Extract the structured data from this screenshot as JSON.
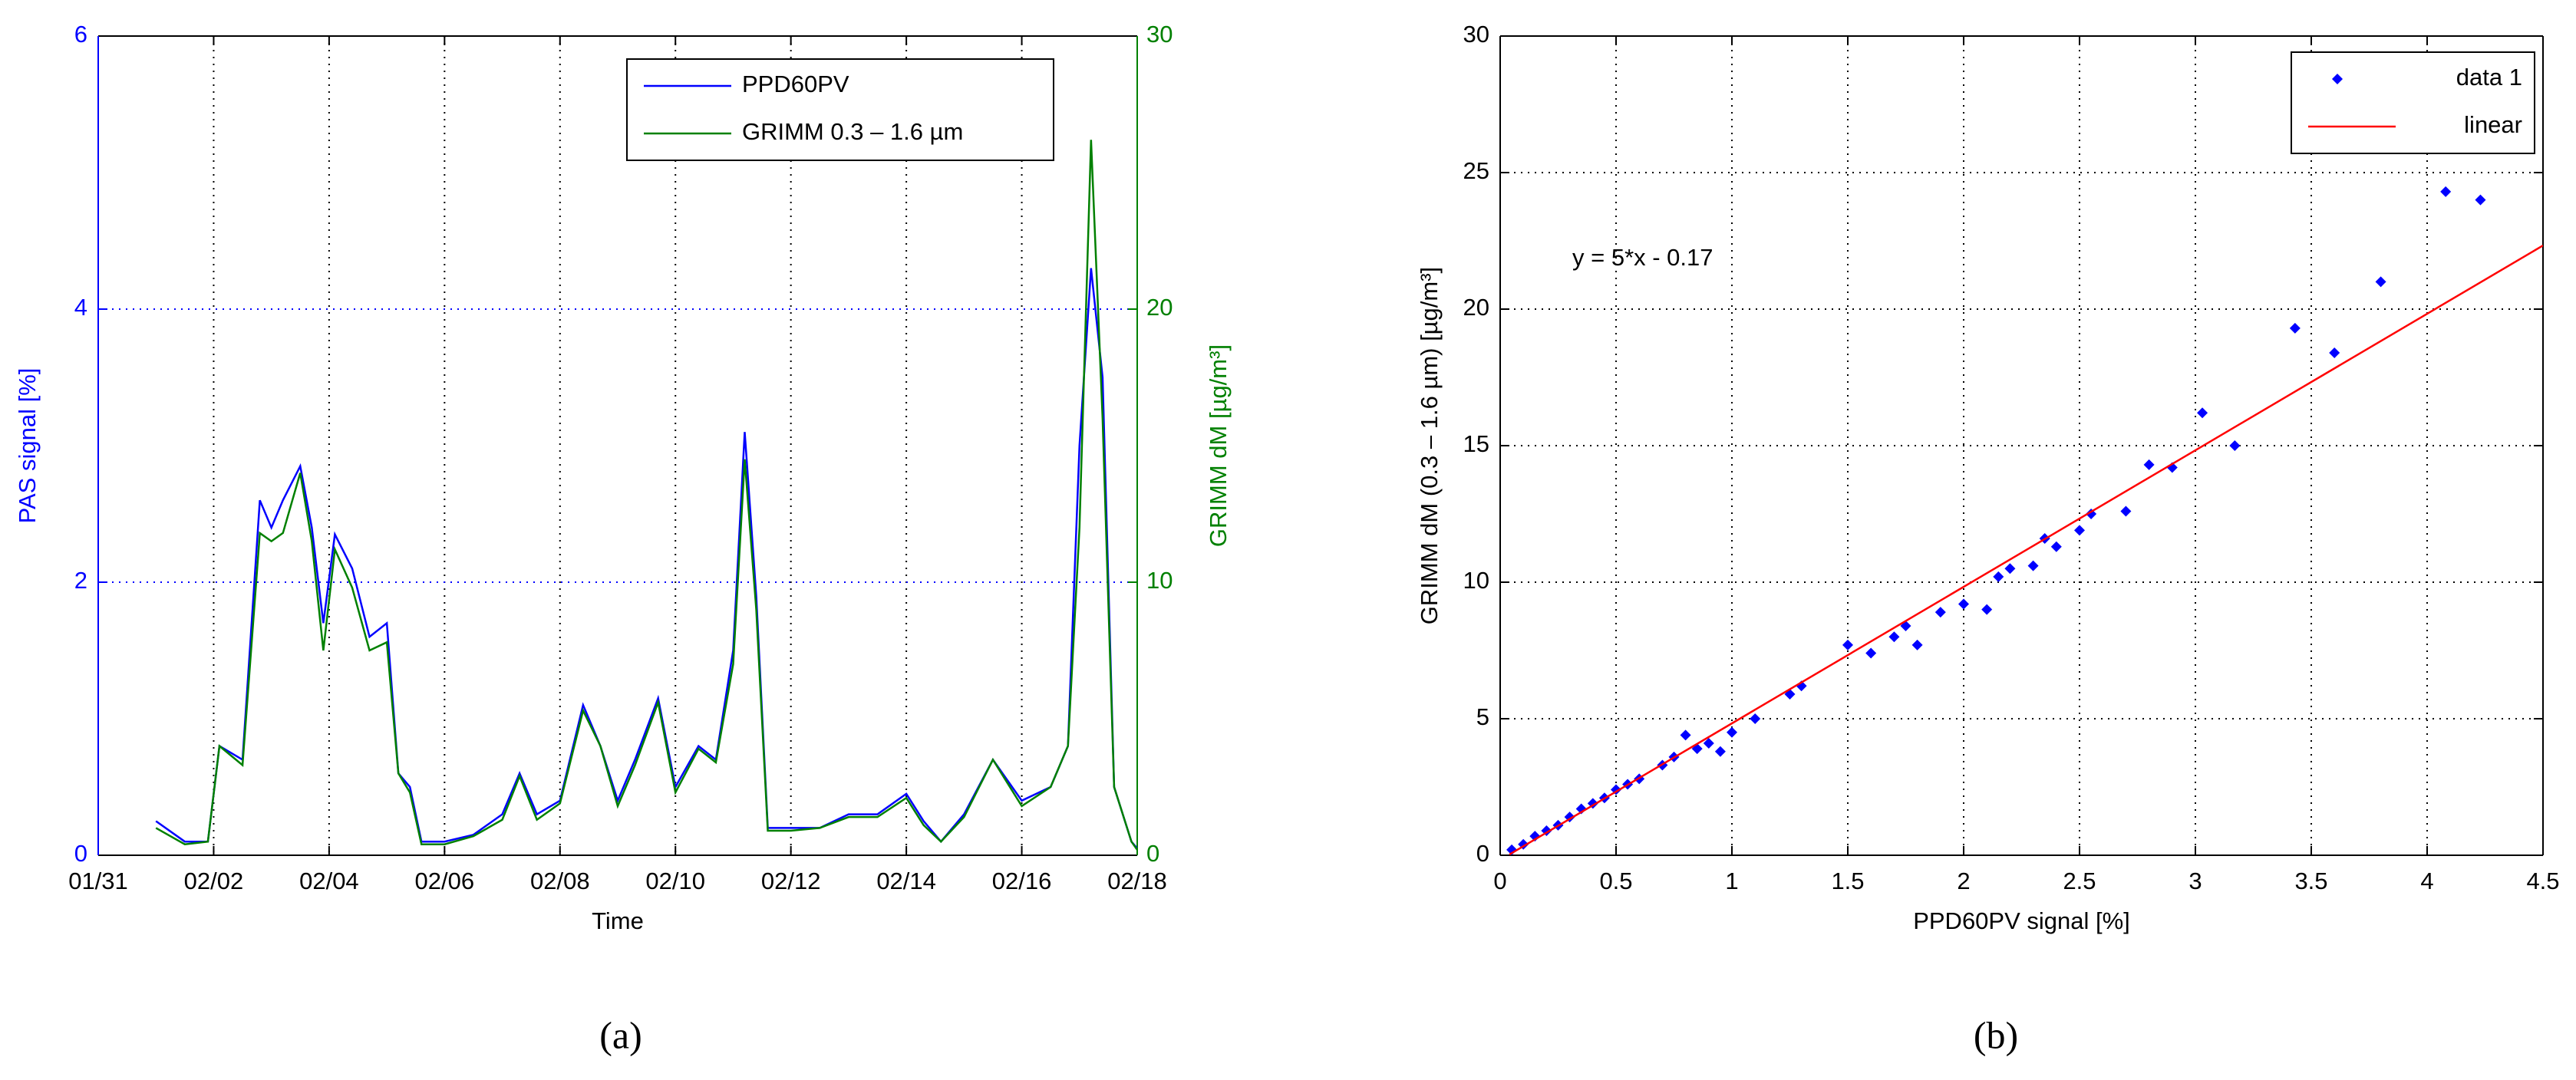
{
  "chart_data": [
    {
      "type": "line",
      "label": "(a)",
      "xlabel": "Time",
      "ylabel": "PAS signal [%]",
      "y2label": "GRIMM dM [µg/m³]",
      "xlim": [
        0,
        18
      ],
      "xticks": [
        {
          "value": 0,
          "label": "01/31"
        },
        {
          "value": 2,
          "label": "02/02"
        },
        {
          "value": 4,
          "label": "02/04"
        },
        {
          "value": 6,
          "label": "02/06"
        },
        {
          "value": 8,
          "label": "02/08"
        },
        {
          "value": 10,
          "label": "02/10"
        },
        {
          "value": 12,
          "label": "02/12"
        },
        {
          "value": 14,
          "label": "02/14"
        },
        {
          "value": 16,
          "label": "02/16"
        },
        {
          "value": 18,
          "label": "02/18"
        }
      ],
      "ylim": [
        0,
        6
      ],
      "yticks": [
        0,
        2,
        4,
        6
      ],
      "y2lim": [
        0,
        30
      ],
      "y2ticks": [
        0,
        10,
        20,
        30
      ],
      "grid": true,
      "legend": "upper right",
      "x": [
        1.0,
        1.5,
        1.9,
        2.1,
        2.5,
        2.8,
        3.0,
        3.2,
        3.5,
        3.7,
        3.9,
        4.1,
        4.4,
        4.7,
        5.0,
        5.2,
        5.4,
        5.6,
        6.0,
        6.5,
        7.0,
        7.3,
        7.6,
        8.0,
        8.4,
        8.7,
        9.0,
        9.3,
        9.7,
        10.0,
        10.4,
        10.7,
        11.0,
        11.2,
        11.4,
        11.6,
        12.0,
        12.5,
        13.0,
        13.5,
        14.0,
        14.3,
        14.6,
        15.0,
        15.5,
        16.0,
        16.5,
        16.8,
        17.0,
        17.2,
        17.4,
        17.6,
        17.9,
        18.0
      ],
      "series": [
        {
          "name": "PPD60PV",
          "color": "#0000ff",
          "values": [
            0.25,
            0.1,
            0.1,
            0.8,
            0.7,
            2.6,
            2.4,
            2.6,
            2.85,
            2.4,
            1.7,
            2.35,
            2.1,
            1.6,
            1.7,
            0.6,
            0.5,
            0.1,
            0.1,
            0.15,
            0.3,
            0.6,
            0.3,
            0.4,
            1.1,
            0.8,
            0.4,
            0.7,
            1.15,
            0.5,
            0.8,
            0.7,
            1.5,
            3.1,
            1.9,
            0.2,
            0.2,
            0.2,
            0.3,
            0.3,
            0.45,
            0.25,
            0.1,
            0.3,
            0.7,
            0.4,
            0.5,
            0.8,
            3.0,
            4.3,
            3.5,
            0.5,
            0.1,
            0.05
          ]
        },
        {
          "name": "GRIMM 0.3 – 1.6 µm",
          "color": "#008000",
          "axis": "y2",
          "values": [
            1.0,
            0.4,
            0.5,
            4.0,
            3.3,
            11.8,
            11.5,
            11.8,
            14.0,
            11.5,
            7.5,
            11.2,
            9.8,
            7.5,
            7.8,
            3.0,
            2.3,
            0.4,
            0.4,
            0.7,
            1.3,
            2.9,
            1.3,
            1.9,
            5.3,
            4.0,
            1.8,
            3.3,
            5.6,
            2.3,
            3.9,
            3.4,
            7.0,
            14.5,
            9.0,
            0.9,
            0.9,
            1.0,
            1.4,
            1.4,
            2.1,
            1.1,
            0.5,
            1.4,
            3.5,
            1.8,
            2.5,
            4.0,
            12.0,
            26.2,
            16.0,
            2.5,
            0.5,
            0.2
          ]
        }
      ]
    },
    {
      "type": "scatter",
      "label": "(b)",
      "xlabel": "PPD60PV signal [%]",
      "ylabel": "GRIMM dM (0.3 – 1.6 µm) [µg/m³]",
      "annotation": "y = 5*x - 0.17",
      "xlim": [
        0,
        4.5
      ],
      "xticks": [
        0,
        0.5,
        1,
        1.5,
        2,
        2.5,
        3,
        3.5,
        4,
        4.5
      ],
      "ylim": [
        0,
        30
      ],
      "yticks": [
        0,
        5,
        10,
        15,
        20,
        25,
        30
      ],
      "grid": true,
      "legend": "upper right",
      "series": [
        {
          "name": "data 1",
          "type": "scatter",
          "color": "#0000ff",
          "x": [
            0.05,
            0.1,
            0.15,
            0.2,
            0.25,
            0.3,
            0.35,
            0.4,
            0.45,
            0.5,
            0.55,
            0.6,
            0.7,
            0.75,
            0.8,
            0.85,
            0.9,
            0.95,
            1.0,
            1.1,
            1.25,
            1.3,
            1.5,
            1.6,
            1.7,
            1.75,
            1.8,
            1.9,
            2.0,
            2.1,
            2.15,
            2.2,
            2.3,
            2.35,
            2.4,
            2.5,
            2.55,
            2.7,
            2.8,
            2.9,
            3.03,
            3.17,
            3.43,
            3.6,
            3.8,
            4.08,
            4.23
          ],
          "values": [
            0.2,
            0.4,
            0.7,
            0.9,
            1.1,
            1.4,
            1.7,
            1.9,
            2.1,
            2.4,
            2.6,
            2.8,
            3.3,
            3.6,
            4.4,
            3.9,
            4.1,
            3.8,
            4.5,
            5.0,
            5.9,
            6.2,
            7.7,
            7.4,
            8.0,
            8.4,
            7.7,
            8.9,
            9.2,
            9.0,
            10.2,
            10.5,
            10.6,
            11.6,
            11.3,
            11.9,
            12.5,
            12.6,
            14.3,
            14.2,
            16.2,
            15.0,
            19.3,
            18.4,
            21.0,
            24.3,
            24.0
          ]
        },
        {
          "name": "linear",
          "type": "line",
          "color": "#ff0000",
          "x": [
            0.04,
            4.5
          ],
          "values": [
            0.03,
            22.33
          ]
        }
      ]
    }
  ]
}
